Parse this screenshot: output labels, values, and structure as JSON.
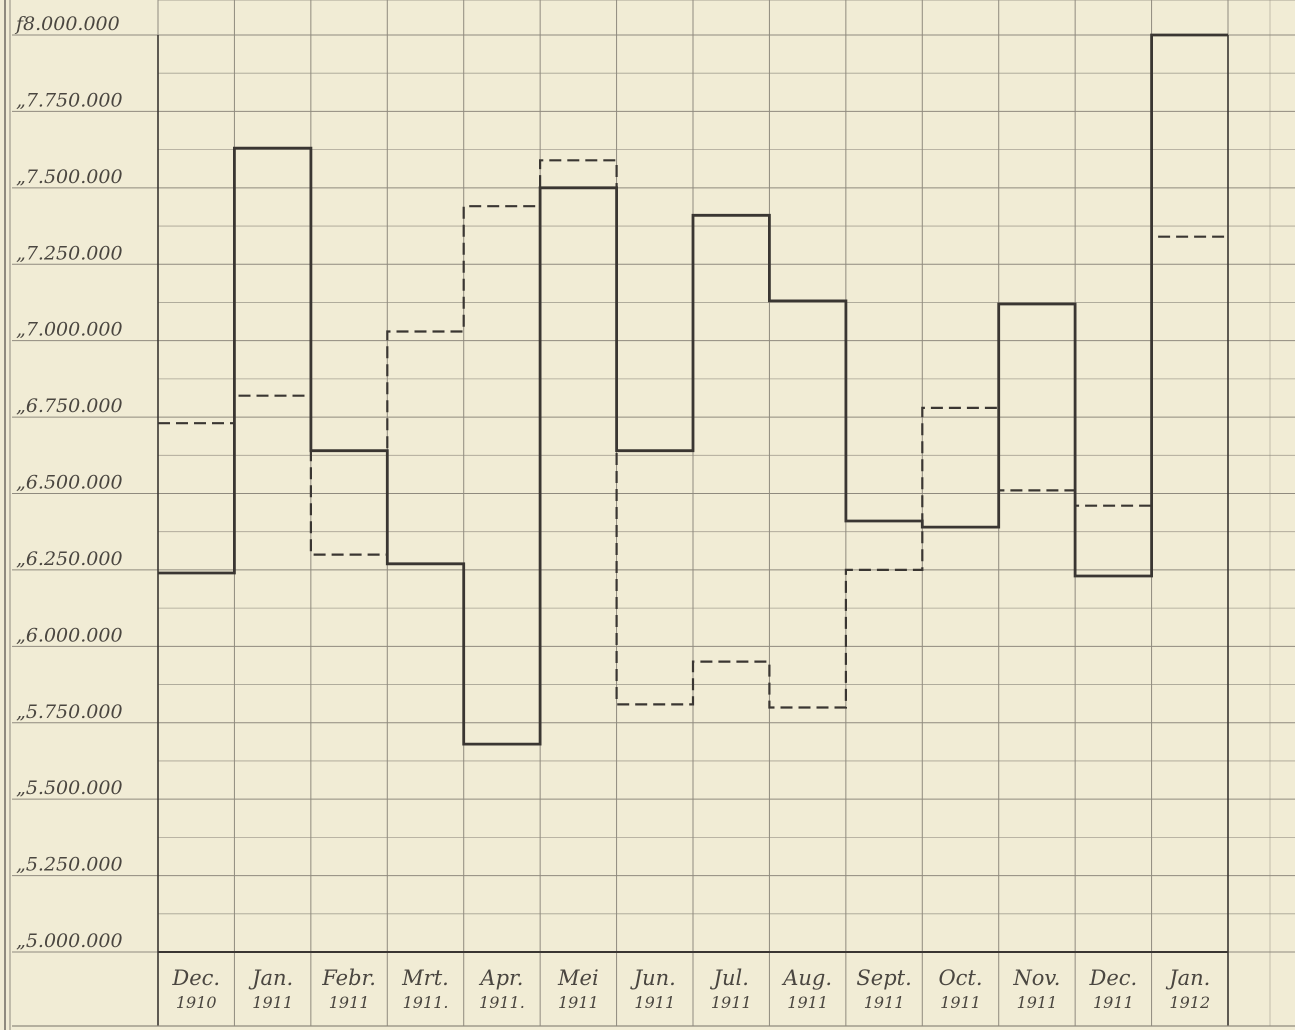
{
  "chart_data": {
    "type": "line",
    "step": true,
    "title": "",
    "xlabel": "",
    "ylabel": "",
    "ylim": [
      5000000,
      8000000
    ],
    "grid": true,
    "legend": "none",
    "y_ticks": [
      {
        "value": 8000000,
        "label": "f8.000.000"
      },
      {
        "value": 7750000,
        "label": "„7.750.000"
      },
      {
        "value": 7500000,
        "label": "„7.500.000"
      },
      {
        "value": 7250000,
        "label": "„7.250.000"
      },
      {
        "value": 7000000,
        "label": "„7.000.000"
      },
      {
        "value": 6750000,
        "label": "„6.750.000"
      },
      {
        "value": 6500000,
        "label": "„6.500.000"
      },
      {
        "value": 6250000,
        "label": "„6.250.000"
      },
      {
        "value": 6000000,
        "label": "„6.000.000"
      },
      {
        "value": 5750000,
        "label": "„5.750.000"
      },
      {
        "value": 5500000,
        "label": "„5.500.000"
      },
      {
        "value": 5250000,
        "label": "„5.250.000"
      },
      {
        "value": 5000000,
        "label": "„5.000.000"
      }
    ],
    "categories": [
      {
        "month": "Dec.",
        "year": "1910"
      },
      {
        "month": "Jan.",
        "year": "1911"
      },
      {
        "month": "Febr.",
        "year": "1911"
      },
      {
        "month": "Mrt.",
        "year": "1911."
      },
      {
        "month": "Apr.",
        "year": "1911."
      },
      {
        "month": "Mei",
        "year": "1911"
      },
      {
        "month": "Jun.",
        "year": "1911"
      },
      {
        "month": "Jul.",
        "year": "1911"
      },
      {
        "month": "Aug.",
        "year": "1911"
      },
      {
        "month": "Sept.",
        "year": "1911"
      },
      {
        "month": "Oct.",
        "year": "1911"
      },
      {
        "month": "Nov.",
        "year": "1911"
      },
      {
        "month": "Dec.",
        "year": "1911"
      },
      {
        "month": "Jan.",
        "year": "1912"
      }
    ],
    "series": [
      {
        "style": "solid",
        "color": "#3a3632",
        "values": [
          6240000,
          7630000,
          6640000,
          6270000,
          5680000,
          7500000,
          6640000,
          7410000,
          7130000,
          6410000,
          6390000,
          7120000,
          6230000,
          8000000
        ]
      },
      {
        "style": "dashed",
        "color": "#3a3632",
        "values": [
          6730000,
          6820000,
          6300000,
          7030000,
          7440000,
          7590000,
          5810000,
          5950000,
          5800000,
          6250000,
          6780000,
          6510000,
          6460000,
          7340000
        ]
      }
    ]
  },
  "colors": {
    "paper": "#f1ecd5",
    "grid": "#8f8a7e",
    "ink": "#3a3632"
  }
}
